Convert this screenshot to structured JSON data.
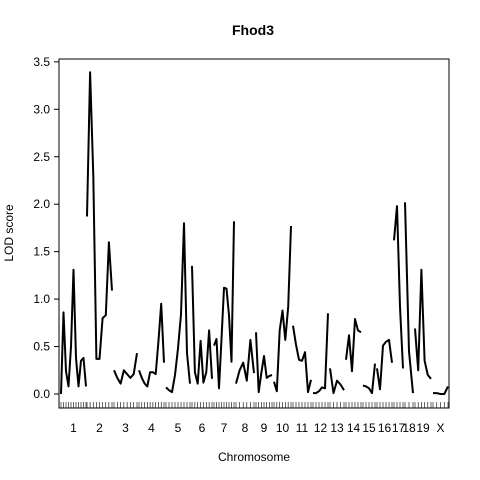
{
  "chart_data": {
    "type": "line",
    "title": "Fhod3",
    "xlabel": "Chromosome",
    "ylabel": "LOD score",
    "ylim": [
      0,
      3.5
    ],
    "y_ticks": [
      0.0,
      0.5,
      1.0,
      1.5,
      2.0,
      2.5,
      3.0,
      3.5
    ],
    "y_tick_labels": [
      "0.0",
      "0.5",
      "1.0",
      "1.5",
      "2.0",
      "2.5",
      "3.0",
      "3.5"
    ],
    "grid": false,
    "line_color": "#000000",
    "chromosomes": [
      {
        "label": "1",
        "segments": [
          [
            0,
            0.86,
            0.24,
            0.08,
            0.5,
            1.31,
            0.38,
            0.08,
            0.35,
            0.38,
            0.08
          ]
        ]
      },
      {
        "label": "2",
        "segments": [
          [
            1.87,
            3.39,
            2.3,
            0.37,
            0.37,
            0.8,
            0.83,
            1.6,
            1.09
          ]
        ]
      },
      {
        "label": "3",
        "segments": [
          [
            0.25,
            0.17,
            0.11,
            0.25,
            0.21,
            0.17,
            0.21,
            0.43
          ]
        ]
      },
      {
        "label": "4",
        "segments": [
          [
            0.25,
            0.17,
            0.11,
            0.08,
            0.23,
            0.23,
            0.21,
            0.55,
            0.95,
            0.33
          ]
        ]
      },
      {
        "label": "5",
        "segments": [
          [
            0.07,
            0.04,
            0.02,
            0.2,
            0.48,
            0.84,
            1.8,
            0.43,
            0.11
          ]
        ]
      },
      {
        "label": "6",
        "segments": [
          [
            1.35,
            0.23,
            0.11,
            0.56,
            0.12,
            0.23,
            0.67,
            0.16
          ]
        ]
      },
      {
        "label": "7",
        "segments": [
          [
            0.51,
            0.58,
            0.06,
            0.58,
            1.12,
            1.11,
            0.83,
            0.34,
            1.82
          ]
        ]
      },
      {
        "label": "8",
        "segments": [
          [
            0.11,
            0.25,
            0.33,
            0.14,
            0.57,
            0.22
          ]
        ]
      },
      {
        "label": "9",
        "segments": [
          [
            0.65,
            0.02,
            0.22,
            0.4,
            0.17,
            0.19,
            0.2
          ]
        ]
      },
      {
        "label": "10",
        "segments": [
          [
            0.13,
            0.03,
            0.67,
            0.88,
            0.57,
            0.92,
            1.77
          ]
        ]
      },
      {
        "label": "11",
        "segments": [
          [
            0.72,
            0.52,
            0.36,
            0.35,
            0.44,
            0.02,
            0.15
          ]
        ]
      },
      {
        "label": "12",
        "segments": [
          [
            0.01,
            0.01,
            0.03,
            0.07,
            0.06,
            0.85
          ]
        ]
      },
      {
        "label": "13",
        "segments": [
          [
            0.27,
            0.01,
            0.14,
            0.1,
            0.04
          ]
        ]
      },
      {
        "label": "14",
        "segments": [
          [
            0.36,
            0.62,
            0.24,
            0.79,
            0.67,
            0.65
          ]
        ]
      },
      {
        "label": "15",
        "segments": [
          [
            0.09,
            0.08,
            0.06,
            0.01,
            0.32
          ]
        ]
      },
      {
        "label": "16",
        "segments": [
          [
            0.27,
            0.05,
            0.51,
            0.55,
            0.57,
            0.33
          ]
        ]
      },
      {
        "label": "17",
        "segments": [
          [
            1.62,
            1.98,
            0.92,
            0.27
          ]
        ]
      },
      {
        "label": "18",
        "segments": [
          [
            2.02,
            0.45,
            0.01
          ]
        ]
      },
      {
        "label": "19",
        "segments": [
          [
            0.69,
            0.25,
            1.31,
            0.35,
            0.2,
            0.16
          ]
        ]
      },
      {
        "label": "X",
        "segments": [
          [
            0.01,
            0.01,
            0.0,
            0.0,
            0.08
          ]
        ]
      }
    ]
  }
}
